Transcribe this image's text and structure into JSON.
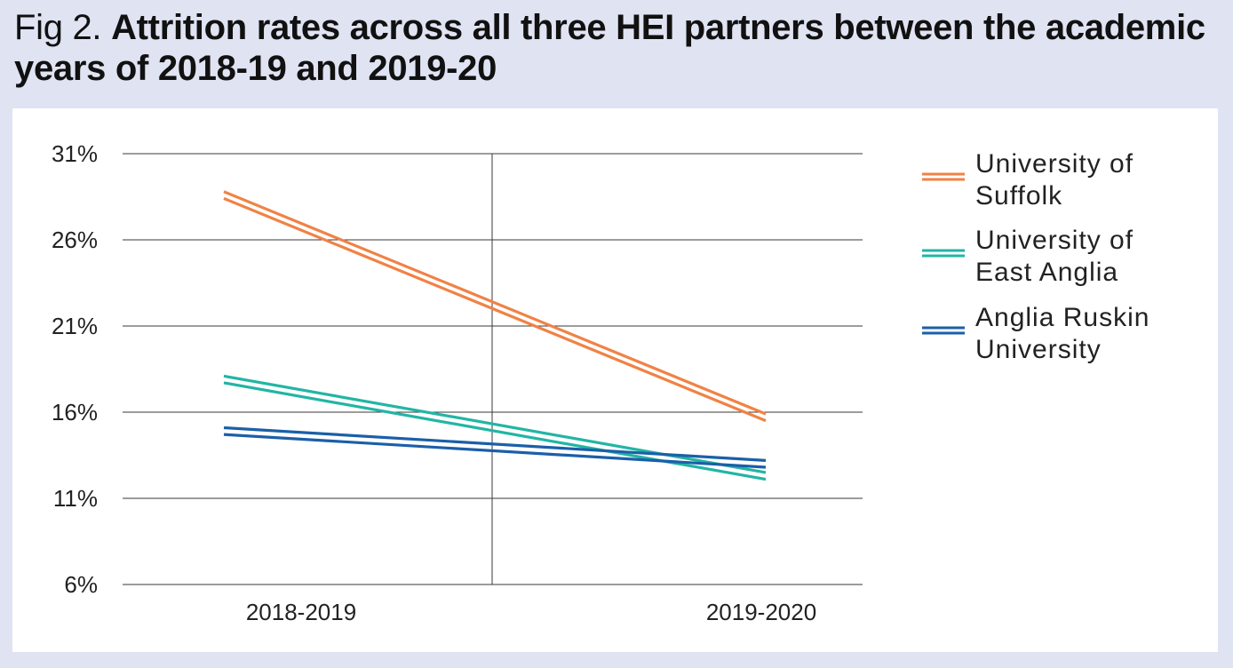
{
  "title": {
    "prefix": "Fig 2.",
    "main": "Attrition rates across all three HEI partners between the academic years of 2018-19 and 2019-20"
  },
  "chart_data": {
    "type": "line",
    "title": "Fig 2. Attrition rates across all three HEI partners between the academic years of 2018-19 and 2019-20",
    "categories": [
      "2018-2019",
      "2019-2020"
    ],
    "ylim": [
      6,
      31
    ],
    "yticks": [
      6,
      11,
      16,
      21,
      26,
      31
    ],
    "ytick_labels": [
      "6%",
      "11%",
      "16%",
      "21%",
      "26%",
      "31%"
    ],
    "xlabel": "",
    "ylabel": "",
    "grid": "horizontal",
    "legend_position": "right",
    "series": [
      {
        "name": "University of Suffolk",
        "legend_lines": [
          "University of",
          "Suffolk"
        ],
        "values": [
          28.6,
          15.7
        ],
        "color": "#f08245"
      },
      {
        "name": "University of East Anglia",
        "legend_lines": [
          "University of",
          "East Anglia"
        ],
        "values": [
          17.9,
          12.3
        ],
        "color": "#22b5a4"
      },
      {
        "name": "Anglia Ruskin University",
        "legend_lines": [
          "Anglia Ruskin",
          "University"
        ],
        "values": [
          14.9,
          13.0
        ],
        "color": "#1b5fa8"
      }
    ]
  }
}
